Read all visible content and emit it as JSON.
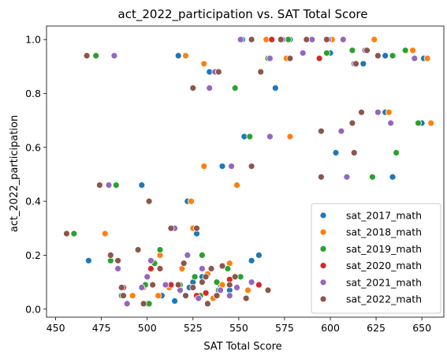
{
  "chart_data": {
    "type": "scatter",
    "title": "act_2022_participation vs. SAT Total Score",
    "xlabel": "SAT Total Score",
    "ylabel": "act_2022_participation",
    "xlim": [
      445,
      662
    ],
    "ylim": [
      -0.03,
      1.05
    ],
    "xticks": [
      "450",
      "475",
      "500",
      "525",
      "550",
      "575",
      "600",
      "625",
      "650"
    ],
    "yticks": [
      "0.0",
      "0.2",
      "0.4",
      "0.6",
      "0.8",
      "1.0"
    ],
    "xtick_values": [
      450,
      475,
      500,
      525,
      550,
      575,
      600,
      625,
      650
    ],
    "ytick_values": [
      0.0,
      0.2,
      0.4,
      0.6,
      0.8,
      1.0
    ],
    "grid": false,
    "legend_position": "lower-right",
    "series": [
      {
        "name": "sat_2017_math",
        "color": "#1f77b4",
        "points": [
          [
            468,
            0.18
          ],
          [
            497,
            0.46
          ],
          [
            500,
            0.02
          ],
          [
            517,
            0.94
          ],
          [
            522,
            0.4
          ],
          [
            527,
            0.28
          ],
          [
            534,
            0.88
          ],
          [
            541,
            0.53
          ],
          [
            553,
            0.64
          ],
          [
            557,
            0.18
          ],
          [
            561,
            0.2
          ],
          [
            570,
            0.82
          ],
          [
            552,
            1.0
          ],
          [
            578,
            1.0
          ],
          [
            600,
            0.95
          ],
          [
            603,
            0.58
          ],
          [
            618,
            0.91
          ],
          [
            630,
            0.73
          ],
          [
            634,
            0.49
          ],
          [
            650,
            0.69
          ],
          [
            630,
            0.94
          ],
          [
            651,
            0.93
          ],
          [
            523,
            0.08
          ],
          [
            530,
            0.12
          ],
          [
            540,
            0.09
          ],
          [
            515,
            0.03
          ],
          [
            545,
            0.07
          ],
          [
            525,
            0.1
          ],
          [
            535,
            0.15
          ],
          [
            508,
            0.05
          ]
        ]
      },
      {
        "name": "sat_2018_math",
        "color": "#ff7f0e",
        "points": [
          [
            477,
            0.28
          ],
          [
            492,
            0.05
          ],
          [
            506,
            0.05
          ],
          [
            507,
            0.2
          ],
          [
            521,
            0.94
          ],
          [
            524,
            0.4
          ],
          [
            531,
            0.91
          ],
          [
            531,
            0.53
          ],
          [
            541,
            0.09
          ],
          [
            548,
            0.82
          ],
          [
            549,
            0.46
          ],
          [
            561,
            0.09
          ],
          [
            565,
            1.0
          ],
          [
            576,
            0.93
          ],
          [
            578,
            0.64
          ],
          [
            601,
            1.0
          ],
          [
            613,
            0.58
          ],
          [
            624,
            1.0
          ],
          [
            632,
            0.73
          ],
          [
            645,
            0.96
          ],
          [
            655,
            0.69
          ],
          [
            653,
            0.93
          ],
          [
            525,
            0.3
          ],
          [
            533,
            0.13
          ],
          [
            545,
            0.17
          ],
          [
            555,
            0.07
          ],
          [
            536,
            0.04
          ],
          [
            512,
            0.08
          ],
          [
            498,
            0.08
          ],
          [
            519,
            0.15
          ]
        ]
      },
      {
        "name": "sat_2019_math",
        "color": "#2ca02c",
        "points": [
          [
            460,
            0.28
          ],
          [
            472,
            0.94
          ],
          [
            483,
            0.46
          ],
          [
            486,
            0.05
          ],
          [
            499,
            0.09
          ],
          [
            501,
            0.02
          ],
          [
            507,
            0.22
          ],
          [
            515,
            0.3
          ],
          [
            530,
            0.2
          ],
          [
            539,
            0.07
          ],
          [
            548,
            0.82
          ],
          [
            556,
            0.64
          ],
          [
            566,
            0.93
          ],
          [
            577,
            1.0
          ],
          [
            598,
            0.95
          ],
          [
            612,
            0.96
          ],
          [
            623,
            0.49
          ],
          [
            634,
            0.94
          ],
          [
            636,
            0.58
          ],
          [
            641,
            0.96
          ],
          [
            648,
            0.69
          ],
          [
            518,
            0.09
          ],
          [
            529,
            0.05
          ],
          [
            544,
            0.15
          ],
          [
            551,
            0.12
          ],
          [
            561,
            0.09
          ],
          [
            480,
            0.18
          ],
          [
            504,
            0.17
          ],
          [
            526,
            0.12
          ],
          [
            538,
            0.1
          ]
        ]
      },
      {
        "name": "sat_2020_math",
        "color": "#d62728",
        "points": [
          [
            502,
            0.15
          ],
          [
            513,
            0.09
          ],
          [
            527,
            0.05
          ],
          [
            545,
            0.11
          ],
          [
            561,
            0.09
          ],
          [
            568,
            1.0
          ],
          [
            594,
            0.93
          ],
          [
            620,
            0.96
          ],
          [
            532,
            0.06
          ],
          [
            487,
            0.08
          ]
        ]
      },
      {
        "name": "sat_2021_math",
        "color": "#9467bd",
        "points": [
          [
            479,
            0.46
          ],
          [
            482,
            0.94
          ],
          [
            489,
            0.02
          ],
          [
            497,
            0.08
          ],
          [
            502,
            0.18
          ],
          [
            510,
            0.09
          ],
          [
            515,
            0.3
          ],
          [
            522,
            0.2
          ],
          [
            534,
            0.82
          ],
          [
            537,
            0.88
          ],
          [
            546,
            0.53
          ],
          [
            549,
            0.08
          ],
          [
            567,
            0.64
          ],
          [
            567,
            0.93
          ],
          [
            585,
            0.95
          ],
          [
            590,
            1.0
          ],
          [
            606,
            0.66
          ],
          [
            609,
            0.49
          ],
          [
            613,
            0.91
          ],
          [
            626,
            0.73
          ],
          [
            633,
            0.69
          ],
          [
            646,
            0.93
          ],
          [
            551,
            1.0
          ],
          [
            574,
            1.0
          ],
          [
            599,
            1.0
          ],
          [
            607,
            1.0
          ],
          [
            619,
            0.96
          ],
          [
            530,
            0.15
          ],
          [
            540,
            0.07
          ],
          [
            557,
            0.1
          ],
          [
            484,
            0.15
          ],
          [
            500,
            0.12
          ],
          [
            518,
            0.07
          ],
          [
            528,
            0.04
          ],
          [
            545,
            0.05
          ]
        ]
      },
      {
        "name": "sat_2022_math",
        "color": "#8c564b",
        "points": [
          [
            456,
            0.28
          ],
          [
            467,
            0.94
          ],
          [
            474,
            0.46
          ],
          [
            480,
            0.2
          ],
          [
            484,
            0.18
          ],
          [
            487,
            0.05
          ],
          [
            495,
            0.22
          ],
          [
            501,
            0.4
          ],
          [
            503,
            0.09
          ],
          [
            507,
            0.15
          ],
          [
            517,
            0.09
          ],
          [
            521,
            0.05
          ],
          [
            525,
            0.82
          ],
          [
            527,
            0.3
          ],
          [
            532,
            0.12
          ],
          [
            535,
            0.15
          ],
          [
            539,
            0.88
          ],
          [
            541,
            0.16
          ],
          [
            548,
            0.12
          ],
          [
            554,
            0.04
          ],
          [
            557,
            0.53
          ],
          [
            562,
            0.88
          ],
          [
            566,
            0.07
          ],
          [
            573,
            1.0
          ],
          [
            578,
            0.93
          ],
          [
            587,
            1.0
          ],
          [
            595,
            0.66
          ],
          [
            595,
            0.49
          ],
          [
            598,
            1.0
          ],
          [
            612,
            0.69
          ],
          [
            613,
            0.58
          ],
          [
            614,
            0.91
          ],
          [
            617,
            0.73
          ],
          [
            620,
            0.96
          ],
          [
            626,
            0.94
          ],
          [
            533,
            0.02
          ],
          [
            545,
            0.09
          ],
          [
            557,
            1.0
          ],
          [
            513,
            0.3
          ],
          [
            498,
            0.02
          ],
          [
            525,
            0.08
          ],
          [
            538,
            0.05
          ],
          [
            486,
            0.08
          ],
          [
            520,
            0.17
          ],
          [
            530,
            0.1
          ]
        ]
      }
    ]
  }
}
